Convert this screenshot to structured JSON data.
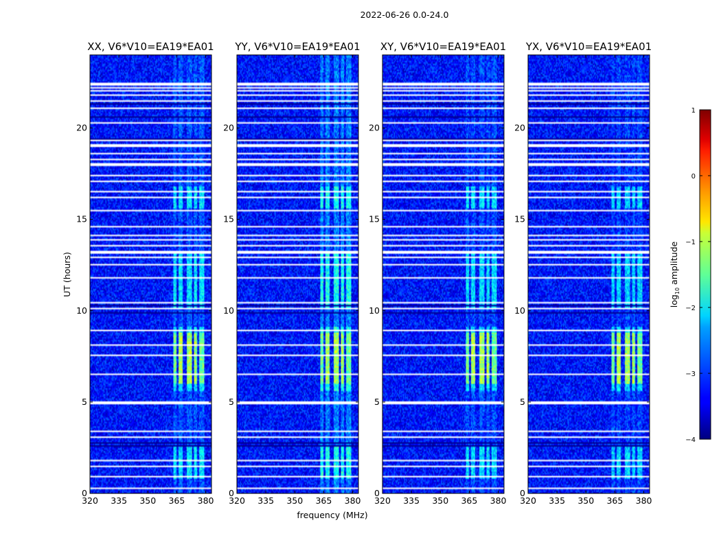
{
  "chart_data": {
    "type": "heatmap",
    "suptitle": "2022-06-26 0.0-24.0",
    "xlabel": "frequency (MHz)",
    "ylabel": "UT (hours)",
    "xlim": [
      320,
      383
    ],
    "ylim": [
      0,
      24
    ],
    "xticks": [
      320,
      335,
      350,
      365,
      380
    ],
    "yticks": [
      0,
      5,
      10,
      15,
      20
    ],
    "colorbar": {
      "label": "log10 amplitude",
      "label_main": "log",
      "label_sub": "10",
      "label_rest": " amplitude",
      "range": [
        -4,
        1
      ],
      "ticks": [
        -4,
        -3,
        -2,
        -1,
        0,
        1
      ],
      "tick_labels": [
        "−4",
        "−3",
        "−2",
        "−1",
        "0",
        "1"
      ],
      "colormap": "jet"
    },
    "background_level": -3.3,
    "band_segments": [
      [
        363,
        365
      ],
      [
        366,
        368
      ],
      [
        370,
        373
      ],
      [
        374,
        375.5
      ],
      [
        376.5,
        379
      ]
    ],
    "band_active_hours": [
      [
        0.8,
        2.6
      ],
      [
        5.6,
        9.1
      ],
      [
        10.2,
        13.1
      ],
      [
        15.6,
        16.8
      ]
    ],
    "band_peak": {
      "hours": [
        6.0,
        8.8
      ],
      "level": -1.3
    },
    "flagged_rows_hours": [
      0.3,
      0.95,
      1.5,
      1.8,
      3.05,
      3.4,
      4.9,
      5.0,
      6.5,
      7.55,
      8.1,
      8.95,
      10.15,
      10.45,
      11.8,
      12.5,
      12.95,
      13.2,
      13.55,
      13.9,
      14.1,
      14.6,
      15.5,
      16.2,
      16.5,
      16.55,
      17.1,
      17.4,
      18.0,
      18.3,
      18.6,
      19.0,
      19.1,
      19.3,
      20.3,
      21.1,
      21.5,
      21.8,
      22.05,
      22.2,
      22.4
    ],
    "dark_rows_hours": [
      2.6,
      2.75,
      9.9,
      10.3,
      19.4,
      20.3,
      20.6,
      21.3
    ],
    "panels": [
      {
        "title": "XX, V6*V10=EA19*EA01",
        "band_level": -2.25
      },
      {
        "title": "YY, V6*V10=EA19*EA01",
        "band_level": -2.05
      },
      {
        "title": "XY, V6*V10=EA19*EA01",
        "band_level": -2.3
      },
      {
        "title": "YX, V6*V10=EA19*EA01",
        "band_level": -2.35
      }
    ]
  }
}
